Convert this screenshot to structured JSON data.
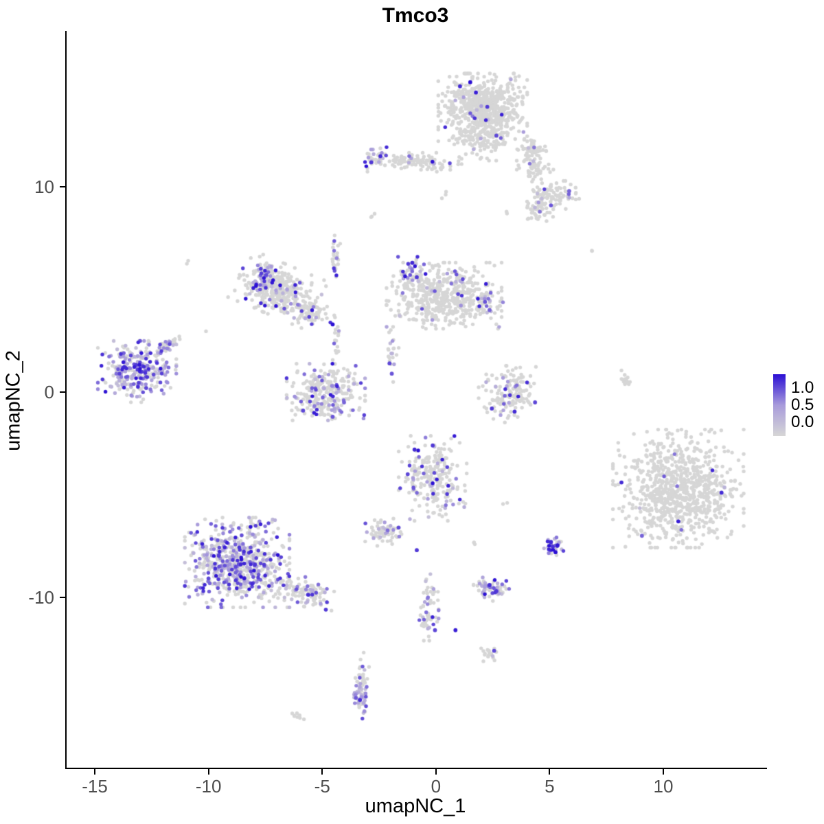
{
  "title": "Tmco3",
  "chart_data": {
    "type": "scatter",
    "title": "Tmco3",
    "xlabel": "umapNC_1",
    "ylabel": "umapNC_2",
    "xlim": [
      -16.3,
      14.5
    ],
    "ylim": [
      -18.3,
      17.6
    ],
    "xticks": [
      -15,
      -10,
      -5,
      0,
      5,
      10
    ],
    "yticks": [
      10,
      0,
      -10
    ],
    "grid": false,
    "legend": {
      "position": "right",
      "ticks": [
        "1.0",
        "0.5",
        "0.0"
      ],
      "low_color": "#d6d6d6",
      "mid_color": "#a89bdb",
      "high_color": "#2b0fd4"
    },
    "point_radius": 2.7,
    "seed": 42,
    "clusters": [
      {
        "name": "top-main",
        "x": 2.0,
        "y": 13.8,
        "sx": 0.85,
        "sy": 0.75,
        "n": 650,
        "frac": 0.02
      },
      {
        "name": "top-bridge",
        "x": 2.0,
        "y": 12.2,
        "sx": 0.5,
        "sy": 0.4,
        "n": 80,
        "frac": 0.04
      },
      {
        "name": "top-right-a",
        "x": 4.1,
        "y": 11.8,
        "sx": 0.3,
        "sy": 0.28,
        "n": 50,
        "frac": 0.05
      },
      {
        "name": "top-right-b",
        "x": 4.3,
        "y": 10.9,
        "sx": 0.35,
        "sy": 0.28,
        "n": 50,
        "frac": 0.05
      },
      {
        "name": "top-right-c",
        "x": 5.1,
        "y": 9.6,
        "sx": 0.5,
        "sy": 0.3,
        "n": 90,
        "frac": 0.1
      },
      {
        "name": "top-right-d",
        "x": 4.4,
        "y": 8.9,
        "sx": 0.3,
        "sy": 0.25,
        "n": 40,
        "frac": 0.05
      },
      {
        "name": "top-left-arm",
        "x": -1.0,
        "y": 11.2,
        "sx": 0.9,
        "sy": 0.2,
        "n": 110,
        "frac": 0.08
      },
      {
        "name": "top-left-arm-hot",
        "x": -2.6,
        "y": 11.4,
        "sx": 0.25,
        "sy": 0.25,
        "n": 25,
        "frac": 0.55
      },
      {
        "name": "strand-up",
        "x": -4.5,
        "y": 6.6,
        "sx": 0.1,
        "sy": 0.45,
        "n": 25,
        "frac": 0.12
      },
      {
        "name": "upper-left-main",
        "x": -7.0,
        "y": 5.0,
        "sx": 0.8,
        "sy": 0.55,
        "angle": -25,
        "n": 320,
        "frac": 0.12
      },
      {
        "name": "upper-left-hot",
        "x": -7.6,
        "y": 5.5,
        "sx": 0.3,
        "sy": 0.35,
        "n": 55,
        "frac": 0.7
      },
      {
        "name": "upper-left-arm",
        "x": -5.5,
        "y": 3.9,
        "sx": 0.45,
        "sy": 0.25,
        "angle": -15,
        "n": 70,
        "frac": 0.12
      },
      {
        "name": "mid-main",
        "x": 0.3,
        "y": 4.7,
        "sx": 1.1,
        "sy": 0.7,
        "n": 520,
        "frac": 0.05
      },
      {
        "name": "mid-hot",
        "x": -1.2,
        "y": 5.9,
        "sx": 0.3,
        "sy": 0.3,
        "n": 40,
        "frac": 0.5
      },
      {
        "name": "mid-right-edge",
        "x": 2.2,
        "y": 4.2,
        "sx": 0.3,
        "sy": 0.25,
        "n": 30,
        "frac": 0.3
      },
      {
        "name": "mid-lower-strand",
        "x": -2.0,
        "y": 1.8,
        "sx": 0.15,
        "sy": 0.6,
        "n": 22,
        "frac": 0.25
      },
      {
        "name": "far-left-main",
        "x": -13.2,
        "y": 1.0,
        "sx": 0.75,
        "sy": 0.65,
        "n": 300,
        "frac": 0.55
      },
      {
        "name": "far-left-arm",
        "x": -11.9,
        "y": 2.3,
        "sx": 0.3,
        "sy": 0.12,
        "angle": 40,
        "n": 35,
        "frac": 0.3
      },
      {
        "name": "center-left-u",
        "x": -4.9,
        "y": 0.0,
        "sx": 0.75,
        "sy": 0.6,
        "n": 270,
        "frac": 0.2
      },
      {
        "name": "center-left-strand",
        "x": -4.4,
        "y": 2.3,
        "sx": 0.12,
        "sy": 0.5,
        "n": 15,
        "frac": 0.15
      },
      {
        "name": "right-mid-loop",
        "x": 3.2,
        "y": -0.1,
        "sx": 0.6,
        "sy": 0.6,
        "n": 140,
        "frac": 0.12
      },
      {
        "name": "right-sliver",
        "x": 8.2,
        "y": 0.8,
        "sx": 0.08,
        "sy": 0.35,
        "angle": 15,
        "n": 14,
        "frac": 0
      },
      {
        "name": "right-big",
        "x": 10.6,
        "y": -4.7,
        "sx": 1.25,
        "sy": 1.25,
        "n": 850,
        "frac": 0.012
      },
      {
        "name": "center-mid",
        "x": -0.2,
        "y": -4.2,
        "sx": 0.65,
        "sy": 0.9,
        "n": 240,
        "frac": 0.18
      },
      {
        "name": "center-small",
        "x": -2.4,
        "y": -6.8,
        "sx": 0.4,
        "sy": 0.3,
        "n": 65,
        "frac": 0.25
      },
      {
        "name": "bottom-left-main",
        "x": -8.8,
        "y": -8.3,
        "sx": 1.0,
        "sy": 0.95,
        "n": 680,
        "frac": 0.42
      },
      {
        "name": "bottom-left-arm",
        "x": -5.9,
        "y": -9.7,
        "sx": 0.65,
        "sy": 0.3,
        "angle": -20,
        "n": 110,
        "frac": 0.3
      },
      {
        "name": "small-blob-a",
        "x": 2.4,
        "y": -9.6,
        "sx": 0.35,
        "sy": 0.25,
        "n": 60,
        "frac": 0.55
      },
      {
        "name": "small-blob-b",
        "x": 5.1,
        "y": -7.5,
        "sx": 0.2,
        "sy": 0.25,
        "n": 40,
        "frac": 0.7
      },
      {
        "name": "lower-strand",
        "x": -0.4,
        "y": -10.4,
        "sx": 0.2,
        "sy": 0.75,
        "n": 55,
        "frac": 0.3
      },
      {
        "name": "tiny-blob",
        "x": 2.3,
        "y": -12.7,
        "sx": 0.2,
        "sy": 0.2,
        "n": 18,
        "frac": 0.15
      },
      {
        "name": "bottom-strand",
        "x": -3.3,
        "y": -14.3,
        "sx": 0.13,
        "sy": 0.7,
        "n": 55,
        "frac": 0.35
      },
      {
        "name": "bottom-strand-hot",
        "x": -3.4,
        "y": -14.9,
        "sx": 0.15,
        "sy": 0.2,
        "n": 20,
        "frac": 0.8
      },
      {
        "name": "bottom-tip",
        "x": -6.1,
        "y": -15.8,
        "sx": 0.15,
        "sy": 0.12,
        "n": 8,
        "frac": 0.1
      },
      {
        "name": "single-1",
        "x": -11.0,
        "y": 6.3,
        "sx": 0.05,
        "sy": 0.05,
        "n": 2,
        "frac": 0
      },
      {
        "name": "single-2",
        "x": 3.0,
        "y": 8.8,
        "sx": 0.06,
        "sy": 0.06,
        "n": 2,
        "frac": 0
      },
      {
        "name": "single-3",
        "x": 6.8,
        "y": 6.9,
        "sx": 0.05,
        "sy": 0.05,
        "n": 2,
        "frac": 0
      },
      {
        "name": "single-4",
        "x": -2.7,
        "y": 8.7,
        "sx": 0.1,
        "sy": 0.15,
        "n": 3,
        "frac": 0
      },
      {
        "name": "single-5",
        "x": 0.3,
        "y": 9.6,
        "sx": 0.1,
        "sy": 0.12,
        "n": 3,
        "frac": 0
      },
      {
        "name": "single-6",
        "x": -10.1,
        "y": 3.0,
        "sx": 0.05,
        "sy": 0.05,
        "n": 1,
        "frac": 0
      },
      {
        "name": "single-7",
        "x": 3.0,
        "y": -5.4,
        "sx": 0.06,
        "sy": 0.06,
        "n": 2,
        "frac": 0
      },
      {
        "name": "single-8",
        "x": 1.6,
        "y": -7.3,
        "sx": 0.08,
        "sy": 0.08,
        "n": 3,
        "frac": 0.2
      }
    ],
    "accent_points": [
      [
        1.45,
        15.1,
        1.0
      ],
      [
        1.7,
        14.6,
        0.95
      ],
      [
        2.2,
        13.9,
        0.85
      ],
      [
        1.0,
        14.9,
        0.9
      ],
      [
        2.6,
        12.5,
        0.8
      ],
      [
        -2.5,
        11.5,
        0.9
      ],
      [
        -2.9,
        11.2,
        0.85
      ],
      [
        5.8,
        9.8,
        0.7
      ],
      [
        5.0,
        9.1,
        0.75
      ],
      [
        -4.6,
        3.3,
        1.0
      ],
      [
        -1.1,
        6.3,
        0.9
      ],
      [
        -0.9,
        5.6,
        0.85
      ],
      [
        2.1,
        4.4,
        0.75
      ],
      [
        2.3,
        4.0,
        0.7
      ],
      [
        -2.1,
        1.4,
        0.8
      ],
      [
        -2.0,
        0.9,
        0.75
      ],
      [
        -12.8,
        0.2,
        0.8
      ],
      [
        -5.9,
        -0.9,
        0.8
      ],
      [
        -4.6,
        -1.2,
        0.75
      ],
      [
        -4.1,
        -0.5,
        0.7
      ],
      [
        2.4,
        -0.8,
        0.85
      ],
      [
        3.4,
        -0.95,
        0.9
      ],
      [
        4.3,
        -0.5,
        0.8
      ],
      [
        8.1,
        -4.4,
        0.9
      ],
      [
        10.6,
        -6.3,
        0.95
      ],
      [
        12.5,
        -4.9,
        0.9
      ],
      [
        9.0,
        -7.0,
        0.7
      ],
      [
        -1.0,
        -2.8,
        0.9
      ],
      [
        -0.2,
        -2.6,
        0.85
      ],
      [
        -1.3,
        -4.0,
        0.8
      ],
      [
        -0.9,
        -7.7,
        0.85
      ],
      [
        -1.7,
        -6.6,
        0.8
      ],
      [
        -0.1,
        -11.6,
        0.8
      ],
      [
        0.8,
        -11.6,
        0.95
      ],
      [
        5.2,
        -7.8,
        1.0
      ],
      [
        5.0,
        -7.3,
        0.9
      ],
      [
        2.5,
        -12.6,
        0.8
      ],
      [
        2.3,
        -9.4,
        0.9
      ],
      [
        2.6,
        -9.7,
        0.85
      ],
      [
        -4.9,
        -10.6,
        0.85
      ],
      [
        -3.4,
        -15.0,
        0.9
      ]
    ]
  }
}
